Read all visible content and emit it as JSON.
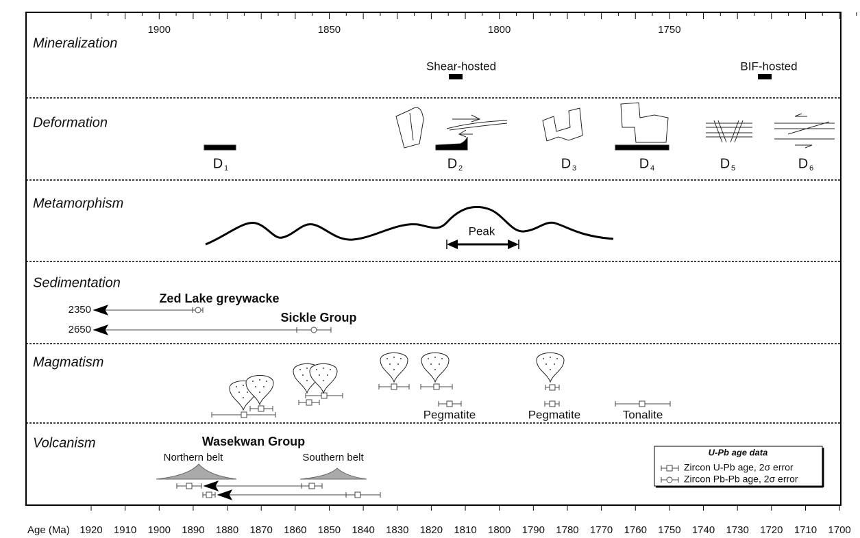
{
  "axis": {
    "label": "Age (Ma)",
    "ticks": [
      1920,
      1910,
      1900,
      1890,
      1880,
      1870,
      1860,
      1850,
      1840,
      1830,
      1820,
      1810,
      1800,
      1790,
      1780,
      1770,
      1760,
      1750,
      1740,
      1730,
      1720,
      1710,
      1700
    ],
    "top_ticks": [
      1900,
      1850,
      1800,
      1750
    ]
  },
  "rows": [
    {
      "title": "Mineralization"
    },
    {
      "title": "Deformation"
    },
    {
      "title": "Metamorphism"
    },
    {
      "title": "Sedimentation"
    },
    {
      "title": "Magmatism"
    },
    {
      "title": "Volcanism"
    }
  ],
  "mineralization": {
    "labels": [
      "Shear-hosted",
      "BIF-hosted"
    ]
  },
  "deformation": {
    "events": [
      {
        "label": "D",
        "sub": "1"
      },
      {
        "label": "D",
        "sub": "2"
      },
      {
        "label": "D",
        "sub": "3"
      },
      {
        "label": "D",
        "sub": "4"
      },
      {
        "label": "D",
        "sub": "5"
      },
      {
        "label": "D",
        "sub": "6"
      }
    ]
  },
  "metamorphism": {
    "peak": "Peak"
  },
  "sedimentation": {
    "units": [
      {
        "name": "Zed Lake greywacke",
        "age": 2350
      },
      {
        "name": "Sickle Group",
        "age": 2650
      }
    ]
  },
  "magmatism": {
    "labels": [
      "Pegmatite",
      "Pegmatite",
      "Tonalite"
    ]
  },
  "volcanism": {
    "group": "Wasekwan Group",
    "belts": [
      "Northern belt",
      "Southern belt"
    ]
  },
  "legend": {
    "title": "U-Pb age data",
    "entries": [
      "Zircon U-Pb age, 2σ error",
      "Zircon Pb-Pb age, 2σ error"
    ]
  }
}
